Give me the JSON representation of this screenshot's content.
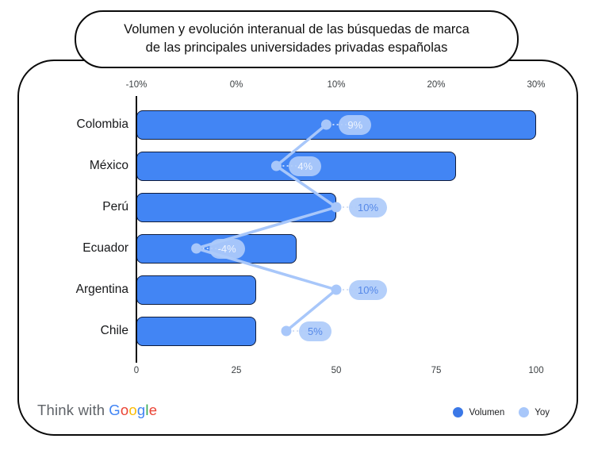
{
  "title": {
    "line1": "Volumen y evolución interanual de las búsquedas de marca",
    "line2": "de las principales universidades privadas españolas"
  },
  "footer": {
    "brand_prefix": "Think with",
    "brand_letters": [
      {
        "ch": "G",
        "color": "#4285F4"
      },
      {
        "ch": "o",
        "color": "#EA4335"
      },
      {
        "ch": "o",
        "color": "#FBBC05"
      },
      {
        "ch": "g",
        "color": "#4285F4"
      },
      {
        "ch": "l",
        "color": "#34A853"
      },
      {
        "ch": "e",
        "color": "#EA4335"
      }
    ]
  },
  "legend": {
    "items": [
      {
        "label": "Volumen",
        "color": "#3b78e7"
      },
      {
        "label": "Yoy",
        "color": "#a8c7fa"
      }
    ]
  },
  "chart_data": {
    "type": "bar",
    "orientation": "horizontal",
    "title": "Volumen y evolución interanual de las búsquedas de marca de las principales universidades privadas españolas",
    "categories": [
      "Colombia",
      "México",
      "Perú",
      "Ecuador",
      "Argentina",
      "Chile"
    ],
    "series": [
      {
        "name": "Volumen",
        "type": "bar",
        "axis": "bottom",
        "values": [
          100,
          80,
          50,
          40,
          30,
          30
        ]
      },
      {
        "name": "Yoy",
        "type": "line",
        "axis": "top",
        "values": [
          9,
          4,
          10,
          -4,
          10,
          5
        ],
        "labels": [
          "9%",
          "4%",
          "10%",
          "-4%",
          "10%",
          "5%"
        ]
      }
    ],
    "axes": {
      "top": {
        "min": -10,
        "max": 30,
        "ticks": [
          -10,
          0,
          10,
          20,
          30
        ],
        "tick_labels": [
          "-10%",
          "0%",
          "10%",
          "20%",
          "30%"
        ],
        "unit": "%"
      },
      "bottom": {
        "min": 0,
        "max": 100,
        "ticks": [
          0,
          25,
          50,
          75,
          100
        ],
        "tick_labels": [
          "0",
          "25",
          "50",
          "75",
          "100"
        ]
      }
    },
    "grid": false,
    "legend_position": "bottom-right",
    "colors": {
      "bar": "#4285F4",
      "bar_border": "#0e1c3d",
      "line": "#a8c7fa",
      "pill_bg": "#aecbfa",
      "pill_text_on_bar": "#eef4fe",
      "pill_text_on_white": "#5588e8",
      "connector_on_bar": "rgba(255,255,255,0.9)",
      "connector_on_white": "#c7d6f1"
    }
  }
}
